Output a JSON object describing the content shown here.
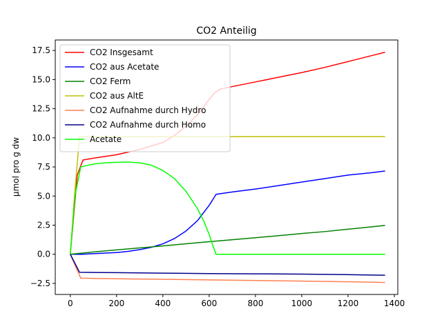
{
  "chart_data": {
    "type": "line",
    "title": "CO2 Anteilig",
    "xlabel": "",
    "ylabel": "µmol pro g dw",
    "xlim": [
      -65,
      1415
    ],
    "ylim": [
      -3.45,
      18.4
    ],
    "xticks": [
      0,
      200,
      400,
      600,
      800,
      1000,
      1200,
      1400
    ],
    "yticks": [
      -2.5,
      0.0,
      2.5,
      5.0,
      7.5,
      10.0,
      12.5,
      15.0,
      17.5
    ],
    "ytick_labels": [
      "−2.5",
      "0.0",
      "2.5",
      "5.0",
      "7.5",
      "10.0",
      "12.5",
      "15.0",
      "17.5"
    ],
    "grid": false,
    "legend_position": "upper-left",
    "series": [
      {
        "name": "CO2 Insgesamt",
        "color": "#ff0000",
        "x": [
          0,
          30,
          55,
          100,
          200,
          300,
          400,
          450,
          500,
          550,
          600,
          625,
          650,
          700,
          800,
          900,
          1000,
          1100,
          1200,
          1300,
          1360
        ],
        "y": [
          0,
          6.8,
          8.1,
          8.25,
          8.55,
          9.0,
          9.6,
          10.2,
          11.0,
          12.0,
          13.3,
          13.9,
          14.2,
          14.4,
          14.8,
          15.2,
          15.6,
          16.05,
          16.55,
          17.05,
          17.35
        ]
      },
      {
        "name": "CO2 aus Acetate",
        "color": "#0000ff",
        "x": [
          0,
          50,
          100,
          150,
          200,
          250,
          300,
          350,
          400,
          450,
          500,
          550,
          600,
          630,
          700,
          800,
          900,
          1000,
          1100,
          1200,
          1300,
          1360
        ],
        "y": [
          0,
          0.0,
          0.05,
          0.1,
          0.15,
          0.25,
          0.4,
          0.6,
          0.9,
          1.35,
          2.0,
          2.9,
          4.2,
          5.15,
          5.35,
          5.6,
          5.9,
          6.2,
          6.5,
          6.8,
          7.0,
          7.15
        ]
      },
      {
        "name": "CO2 Ferm",
        "color": "#008000",
        "x": [
          0,
          100,
          200,
          300,
          400,
          500,
          600,
          700,
          800,
          900,
          1000,
          1100,
          1200,
          1300,
          1360
        ],
        "y": [
          0,
          0.2,
          0.38,
          0.55,
          0.72,
          0.9,
          1.08,
          1.25,
          1.42,
          1.6,
          1.78,
          1.95,
          2.15,
          2.35,
          2.48
        ]
      },
      {
        "name": "CO2 aus AltE",
        "color": "#bfbf00",
        "x": [
          0,
          20,
          40,
          55,
          100,
          200,
          400,
          600,
          800,
          1000,
          1200,
          1360
        ],
        "y": [
          0,
          5.5,
          10.1,
          10.1,
          10.1,
          10.1,
          10.1,
          10.1,
          10.1,
          10.1,
          10.1,
          10.1
        ]
      },
      {
        "name": "CO2 Aufnahme durch Hydro",
        "color": "#ff7f50",
        "x": [
          0,
          45,
          100,
          200,
          400,
          600,
          800,
          1000,
          1200,
          1360
        ],
        "y": [
          0,
          -2.05,
          -2.07,
          -2.1,
          -2.15,
          -2.2,
          -2.25,
          -2.3,
          -2.36,
          -2.42
        ]
      },
      {
        "name": "CO2 Aufnahme durch Homo",
        "color": "#00008b",
        "x": [
          0,
          40,
          100,
          200,
          400,
          600,
          800,
          1000,
          1200,
          1360
        ],
        "y": [
          0,
          -1.55,
          -1.56,
          -1.58,
          -1.62,
          -1.66,
          -1.68,
          -1.7,
          -1.75,
          -1.8
        ]
      },
      {
        "name": "Acetate",
        "color": "#00ff00",
        "x": [
          0,
          20,
          45,
          100,
          150,
          200,
          250,
          300,
          350,
          400,
          450,
          500,
          550,
          580,
          600,
          615,
          630,
          700,
          800,
          1000,
          1200,
          1360
        ],
        "y": [
          0,
          5.0,
          7.5,
          7.75,
          7.85,
          7.9,
          7.92,
          7.85,
          7.65,
          7.2,
          6.5,
          5.4,
          3.9,
          2.7,
          1.7,
          0.8,
          0.0,
          0.0,
          0.0,
          0.0,
          0.0,
          0.0
        ]
      }
    ]
  }
}
